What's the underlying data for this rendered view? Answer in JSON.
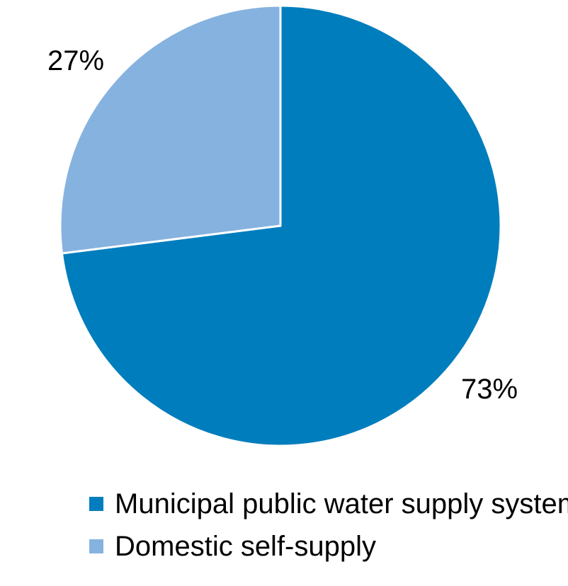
{
  "chart_data": {
    "type": "pie",
    "title": "",
    "slices": [
      {
        "name": "Municipal public water supply system",
        "value": 73,
        "label": "73%",
        "color": "#007DBD"
      },
      {
        "name": "Domestic self-supply",
        "value": 27,
        "label": "27%",
        "color": "#86B2DF"
      }
    ],
    "legend_placement": "bottom-left",
    "start_angle_deg": 0,
    "direction": "clockwise"
  }
}
